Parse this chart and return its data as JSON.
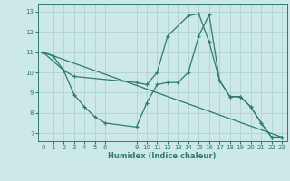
{
  "line1_x": [
    0,
    1,
    2,
    3,
    9,
    10,
    11,
    12,
    14,
    15,
    16,
    17,
    18,
    19,
    20,
    21,
    22,
    23
  ],
  "line1_y": [
    11.0,
    10.8,
    10.1,
    9.8,
    9.5,
    9.4,
    10.0,
    11.8,
    12.8,
    12.9,
    11.5,
    9.6,
    8.8,
    8.8,
    8.3,
    7.5,
    6.8,
    6.8
  ],
  "line2_x": [
    0,
    2,
    3,
    4,
    5,
    6,
    9,
    10,
    11,
    12,
    13,
    14,
    15,
    16,
    17,
    18,
    19,
    20,
    21,
    22,
    23
  ],
  "line2_y": [
    11.0,
    10.1,
    8.9,
    8.3,
    7.8,
    7.5,
    7.3,
    8.5,
    9.4,
    9.5,
    9.5,
    10.0,
    11.8,
    12.85,
    9.6,
    8.8,
    8.8,
    8.3,
    7.5,
    6.8,
    6.8
  ],
  "line3_x": [
    0,
    23
  ],
  "line3_y": [
    11.0,
    6.8
  ],
  "color": "#2d7b6e",
  "bg_color": "#cce8e8",
  "grid_color": "#aacece",
  "xlabel": "Humidex (Indice chaleur)",
  "xlim": [
    -0.5,
    23.5
  ],
  "ylim": [
    6.6,
    13.4
  ],
  "yticks": [
    7,
    8,
    9,
    10,
    11,
    12,
    13
  ],
  "xticks": [
    0,
    1,
    2,
    3,
    4,
    5,
    6,
    9,
    10,
    11,
    12,
    13,
    14,
    15,
    16,
    17,
    18,
    19,
    20,
    21,
    22,
    23
  ],
  "xtick_labels": [
    "0",
    "1",
    "2",
    "3",
    "4",
    "5",
    "6",
    "9",
    "10",
    "11",
    "12",
    "13",
    "14",
    "15",
    "16",
    "17",
    "18",
    "19",
    "20",
    "21",
    "22",
    "23"
  ],
  "linewidth": 0.9,
  "marker": "+",
  "markersize": 3.5,
  "tick_fontsize": 5.0,
  "xlabel_fontsize": 6.0
}
